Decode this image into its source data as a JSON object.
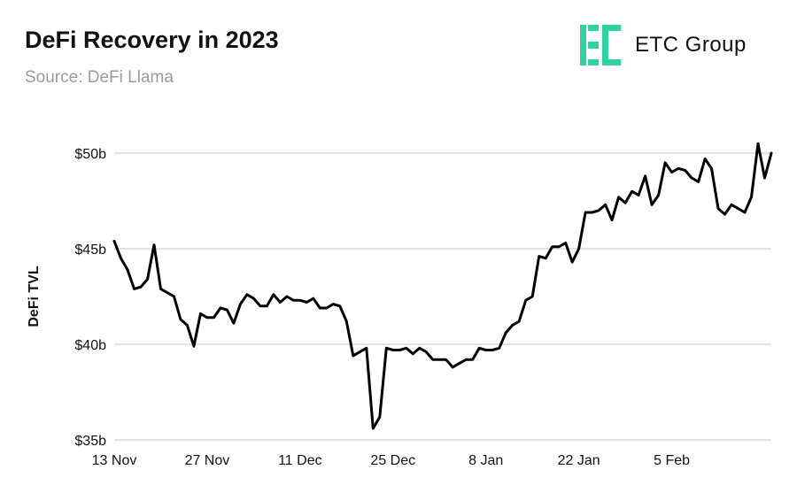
{
  "header": {
    "title": "DeFi Recovery in 2023",
    "subtitle": "Source: DeFi Llama"
  },
  "logo": {
    "text": "ETC Group",
    "icon": "etc-group-logo-icon",
    "color": "#2ed3a0"
  },
  "colors": {
    "line": "#000000",
    "grid": "#d2d2d2"
  },
  "chart_data": {
    "type": "line",
    "title": "DeFi Recovery in 2023",
    "subtitle": "Source: DeFi Llama",
    "xlabel": "",
    "ylabel": "DeFi TVL",
    "ylim": [
      35,
      51.5
    ],
    "grid": true,
    "y_ticks": [
      {
        "value": 50,
        "label": "$50b"
      },
      {
        "value": 45,
        "label": "$45b"
      },
      {
        "value": 40,
        "label": "$40b"
      },
      {
        "value": 35,
        "label": "$35b"
      }
    ],
    "x_ticks": [
      {
        "day": 0,
        "label": "13 Nov"
      },
      {
        "day": 14,
        "label": "27 Nov"
      },
      {
        "day": 28,
        "label": "11 Dec"
      },
      {
        "day": 42,
        "label": "25 Dec"
      },
      {
        "day": 56,
        "label": "8 Jan"
      },
      {
        "day": 70,
        "label": "22 Jan"
      },
      {
        "day": 84,
        "label": "5 Feb"
      }
    ],
    "series": [
      {
        "values": [
          45.4,
          44.5,
          43.9,
          42.9,
          43.0,
          43.4,
          45.2,
          42.9,
          42.7,
          42.5,
          41.3,
          41.0,
          39.9,
          41.6,
          41.4,
          41.4,
          41.9,
          41.8,
          41.1,
          42.1,
          42.6,
          42.4,
          42.0,
          42.0,
          42.6,
          42.2,
          42.5,
          42.3,
          42.3,
          42.2,
          42.4,
          41.9,
          41.9,
          42.1,
          42.0,
          41.2,
          39.4,
          39.6,
          39.8,
          35.6,
          36.2,
          39.8,
          39.7,
          39.7,
          39.8,
          39.5,
          39.8,
          39.6,
          39.2,
          39.2,
          39.2,
          38.8,
          39.0,
          39.2,
          39.2,
          39.8,
          39.7,
          39.7,
          39.8,
          40.6,
          41.0,
          41.2,
          42.3,
          42.5,
          44.6,
          44.5,
          45.1,
          45.1,
          45.3,
          44.3,
          45.0,
          46.9,
          46.9,
          47.0,
          47.3,
          46.5,
          47.7,
          47.4,
          48.0,
          47.8,
          48.8,
          47.3,
          47.8,
          49.5,
          49.0,
          49.2,
          49.1,
          48.7,
          48.5,
          49.7,
          49.2,
          47.1,
          46.8,
          47.3,
          47.1,
          46.9,
          47.7,
          50.5,
          48.7,
          50.0
        ]
      }
    ]
  }
}
